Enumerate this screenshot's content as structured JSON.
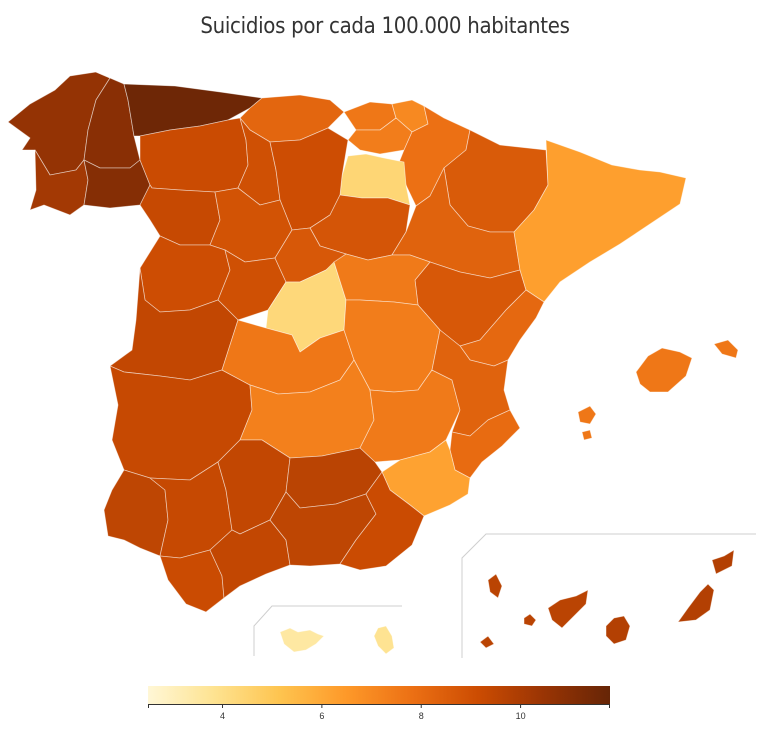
{
  "title": "Suicidios por cada 100.000 habitantes",
  "legend": {
    "min": 2.5,
    "max": 11.8,
    "ticks": [
      4,
      6,
      8,
      10
    ],
    "gradient": [
      "#fff7d6",
      "#fee391",
      "#fec44f",
      "#fe9929",
      "#ec7014",
      "#cc4c02",
      "#993404",
      "#662506"
    ]
  },
  "provinces": [
    {
      "id": "a-coruna",
      "value": 10.6
    },
    {
      "id": "lugo",
      "value": 10.9
    },
    {
      "id": "pontevedra",
      "value": 10.2
    },
    {
      "id": "ourense",
      "value": 11.0
    },
    {
      "id": "asturias",
      "value": 11.6
    },
    {
      "id": "cantabria",
      "value": 8.2
    },
    {
      "id": "bizkaia",
      "value": 7.6
    },
    {
      "id": "gipuzkoa",
      "value": 7.0
    },
    {
      "id": "araba",
      "value": 7.4
    },
    {
      "id": "navarra",
      "value": 7.8
    },
    {
      "id": "la-rioja",
      "value": 4.4
    },
    {
      "id": "leon",
      "value": 9.2
    },
    {
      "id": "palencia",
      "value": 9.0
    },
    {
      "id": "burgos",
      "value": 9.1
    },
    {
      "id": "zamora",
      "value": 9.3
    },
    {
      "id": "valladolid",
      "value": 8.9
    },
    {
      "id": "soria",
      "value": 8.8
    },
    {
      "id": "salamanca",
      "value": 9.1
    },
    {
      "id": "avila",
      "value": 9.0
    },
    {
      "id": "segovia",
      "value": 8.7
    },
    {
      "id": "huesca",
      "value": 8.6
    },
    {
      "id": "zaragoza",
      "value": 8.3
    },
    {
      "id": "teruel",
      "value": 8.7
    },
    {
      "id": "catalunya",
      "value": 6.3
    },
    {
      "id": "madrid",
      "value": 4.3
    },
    {
      "id": "guadalajara",
      "value": 7.5
    },
    {
      "id": "caceres",
      "value": 9.4
    },
    {
      "id": "badajoz",
      "value": 9.3
    },
    {
      "id": "toledo",
      "value": 7.6
    },
    {
      "id": "cuenca",
      "value": 7.4
    },
    {
      "id": "ciudad-real",
      "value": 7.3
    },
    {
      "id": "albacete",
      "value": 7.5
    },
    {
      "id": "castellon",
      "value": 8.1
    },
    {
      "id": "valencia",
      "value": 8.3
    },
    {
      "id": "alicante",
      "value": 8.0
    },
    {
      "id": "murcia",
      "value": 6.2
    },
    {
      "id": "baleares",
      "value": 7.6
    },
    {
      "id": "huelva",
      "value": 9.5
    },
    {
      "id": "sevilla",
      "value": 9.3
    },
    {
      "id": "cordoba",
      "value": 9.4
    },
    {
      "id": "jaen",
      "value": 9.6
    },
    {
      "id": "cadiz",
      "value": 9.2
    },
    {
      "id": "malaga",
      "value": 9.4
    },
    {
      "id": "granada",
      "value": 9.5
    },
    {
      "id": "almeria",
      "value": 9.2
    },
    {
      "id": "ceuta",
      "value": 3.5
    },
    {
      "id": "melilla",
      "value": 3.8
    },
    {
      "id": "santa-cruz-de-tenerife",
      "value": 9.6
    },
    {
      "id": "las-palmas",
      "value": 9.8
    }
  ]
}
